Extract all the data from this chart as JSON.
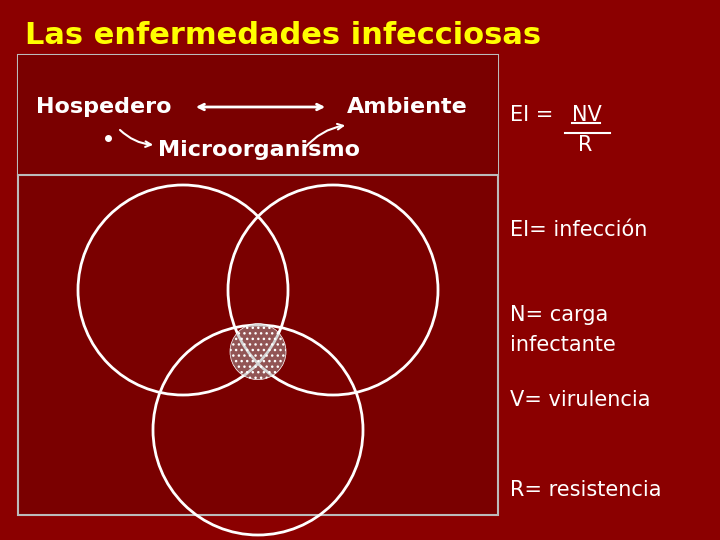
{
  "bg_color": "#8B0000",
  "title": "Las enfermedades infecciosas",
  "title_color": "#FFFF00",
  "title_fontsize": 22,
  "title_bold": true,
  "left_box_color": "#7A0000",
  "left_box_border": "#CCCCCC",
  "header_text_color": "#FFFFFF",
  "hospedero_label": "Hospedero",
  "ambiente_label": "Ambiente",
  "micro_label": "Microorganismo",
  "right_text_color": "#FFFFFF",
  "ei_formula_line1": "EI =  NV",
  "ei_formula_line2": "R",
  "ei_def": "EI= infección",
  "n_def_line1": "N= carga",
  "n_def_line2": "infectante",
  "v_def": "V= virulencia",
  "r_def": "R= resistencia"
}
